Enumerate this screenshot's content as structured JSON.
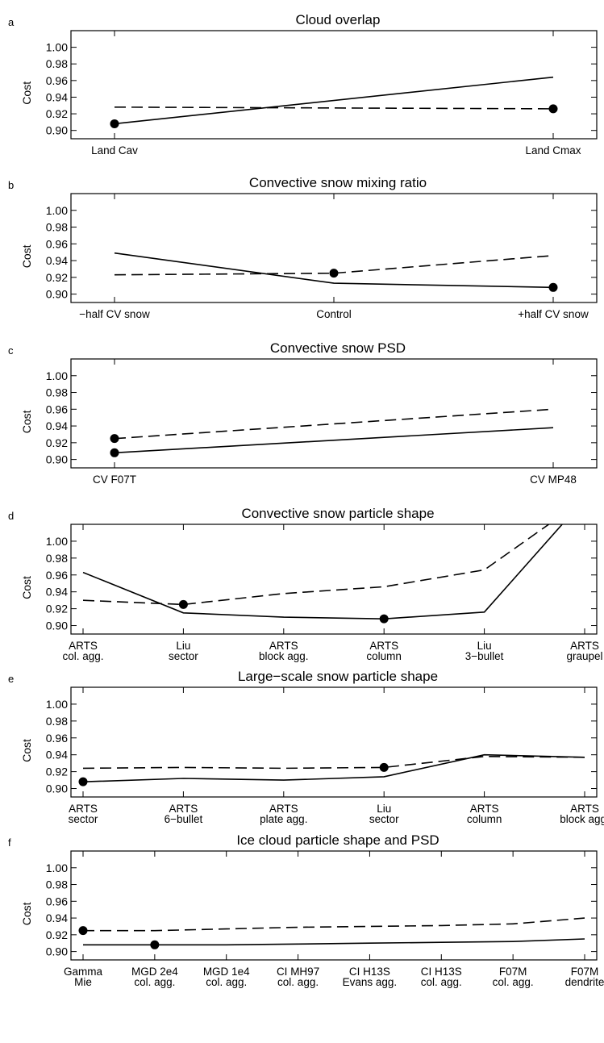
{
  "chart_data": [
    {
      "panel_letter": "a",
      "type": "line",
      "title": "Cloud overlap",
      "ylabel": "Cost",
      "ylim": [
        0.89,
        1.02
      ],
      "yticks": [
        "0.90",
        "0.92",
        "0.94",
        "0.96",
        "0.98",
        "1.00"
      ],
      "categories": [
        [
          "Land Cav"
        ],
        [
          "Land Cmax"
        ]
      ],
      "series": [
        {
          "style": "solid",
          "values": [
            0.908,
            0.964
          ],
          "markers": [
            0
          ]
        },
        {
          "style": "dashed",
          "values": [
            0.928,
            0.926
          ],
          "markers": [
            1
          ]
        }
      ]
    },
    {
      "panel_letter": "b",
      "type": "line",
      "title": "Convective snow mixing ratio",
      "ylabel": "Cost",
      "ylim": [
        0.89,
        1.02
      ],
      "yticks": [
        "0.90",
        "0.92",
        "0.94",
        "0.96",
        "0.98",
        "1.00"
      ],
      "categories": [
        [
          "−half CV snow"
        ],
        [
          "Control"
        ],
        [
          "+half CV snow"
        ]
      ],
      "series": [
        {
          "style": "solid",
          "values": [
            0.949,
            0.913,
            0.908
          ],
          "markers": [
            2
          ]
        },
        {
          "style": "dashed",
          "values": [
            0.923,
            0.925,
            0.946
          ],
          "markers": [
            1
          ]
        }
      ]
    },
    {
      "panel_letter": "c",
      "type": "line",
      "title": "Convective snow PSD",
      "ylabel": "Cost",
      "ylim": [
        0.89,
        1.02
      ],
      "yticks": [
        "0.90",
        "0.92",
        "0.94",
        "0.96",
        "0.98",
        "1.00"
      ],
      "categories": [
        [
          "CV F07T"
        ],
        [
          "CV MP48"
        ]
      ],
      "series": [
        {
          "style": "solid",
          "values": [
            0.908,
            0.938
          ],
          "markers": [
            0
          ]
        },
        {
          "style": "dashed",
          "values": [
            0.925,
            0.96
          ],
          "markers": [
            0
          ]
        }
      ]
    },
    {
      "panel_letter": "d",
      "type": "line",
      "title": "Convective snow particle shape",
      "ylabel": "Cost",
      "ylim": [
        0.89,
        1.02
      ],
      "yticks": [
        "0.90",
        "0.92",
        "0.94",
        "0.96",
        "0.98",
        "1.00"
      ],
      "categories": [
        [
          "ARTS",
          "col. agg."
        ],
        [
          "Liu",
          "sector"
        ],
        [
          "ARTS",
          "block agg."
        ],
        [
          "ARTS",
          "column"
        ],
        [
          "Liu",
          "3−bullet"
        ],
        [
          "ARTS",
          "graupel"
        ]
      ],
      "series": [
        {
          "style": "solid",
          "values": [
            0.963,
            0.915,
            0.91,
            0.908,
            0.916,
            1.05
          ],
          "markers": [
            3
          ]
        },
        {
          "style": "dashed",
          "values": [
            0.93,
            0.925,
            0.938,
            0.946,
            0.966,
            1.05
          ],
          "markers": [
            1
          ]
        }
      ]
    },
    {
      "panel_letter": "e",
      "type": "line",
      "title": "Large−scale snow particle shape",
      "ylabel": "Cost",
      "ylim": [
        0.89,
        1.02
      ],
      "yticks": [
        "0.90",
        "0.92",
        "0.94",
        "0.96",
        "0.98",
        "1.00"
      ],
      "categories": [
        [
          "ARTS",
          "sector"
        ],
        [
          "ARTS",
          "6−bullet"
        ],
        [
          "ARTS",
          "plate agg."
        ],
        [
          "Liu",
          "sector"
        ],
        [
          "ARTS",
          "column"
        ],
        [
          "ARTS",
          "block agg."
        ]
      ],
      "series": [
        {
          "style": "solid",
          "values": [
            0.908,
            0.912,
            0.91,
            0.914,
            0.94,
            0.937
          ],
          "markers": [
            0
          ]
        },
        {
          "style": "dashed",
          "values": [
            0.924,
            0.925,
            0.924,
            0.925,
            0.938,
            0.937
          ],
          "markers": [
            3
          ]
        }
      ]
    },
    {
      "panel_letter": "f",
      "type": "line",
      "title": "Ice cloud particle shape and PSD",
      "ylabel": "Cost",
      "ylim": [
        0.89,
        1.02
      ],
      "yticks": [
        "0.90",
        "0.92",
        "0.94",
        "0.96",
        "0.98",
        "1.00"
      ],
      "categories": [
        [
          "Gamma",
          "Mie"
        ],
        [
          "MGD 2e4",
          "col. agg."
        ],
        [
          "MGD 1e4",
          "col. agg."
        ],
        [
          "CI MH97",
          "col. agg."
        ],
        [
          "CI H13S",
          "Evans agg."
        ],
        [
          "CI H13S",
          "col. agg."
        ],
        [
          "F07M",
          "col. agg."
        ],
        [
          "F07M",
          "dendrite"
        ]
      ],
      "series": [
        {
          "style": "solid",
          "values": [
            0.908,
            0.908,
            0.908,
            0.909,
            0.91,
            0.911,
            0.912,
            0.915
          ],
          "markers": [
            1
          ]
        },
        {
          "style": "dashed",
          "values": [
            0.925,
            0.925,
            0.927,
            0.929,
            0.93,
            0.931,
            0.933,
            0.94
          ],
          "markers": [
            0
          ]
        }
      ]
    }
  ]
}
